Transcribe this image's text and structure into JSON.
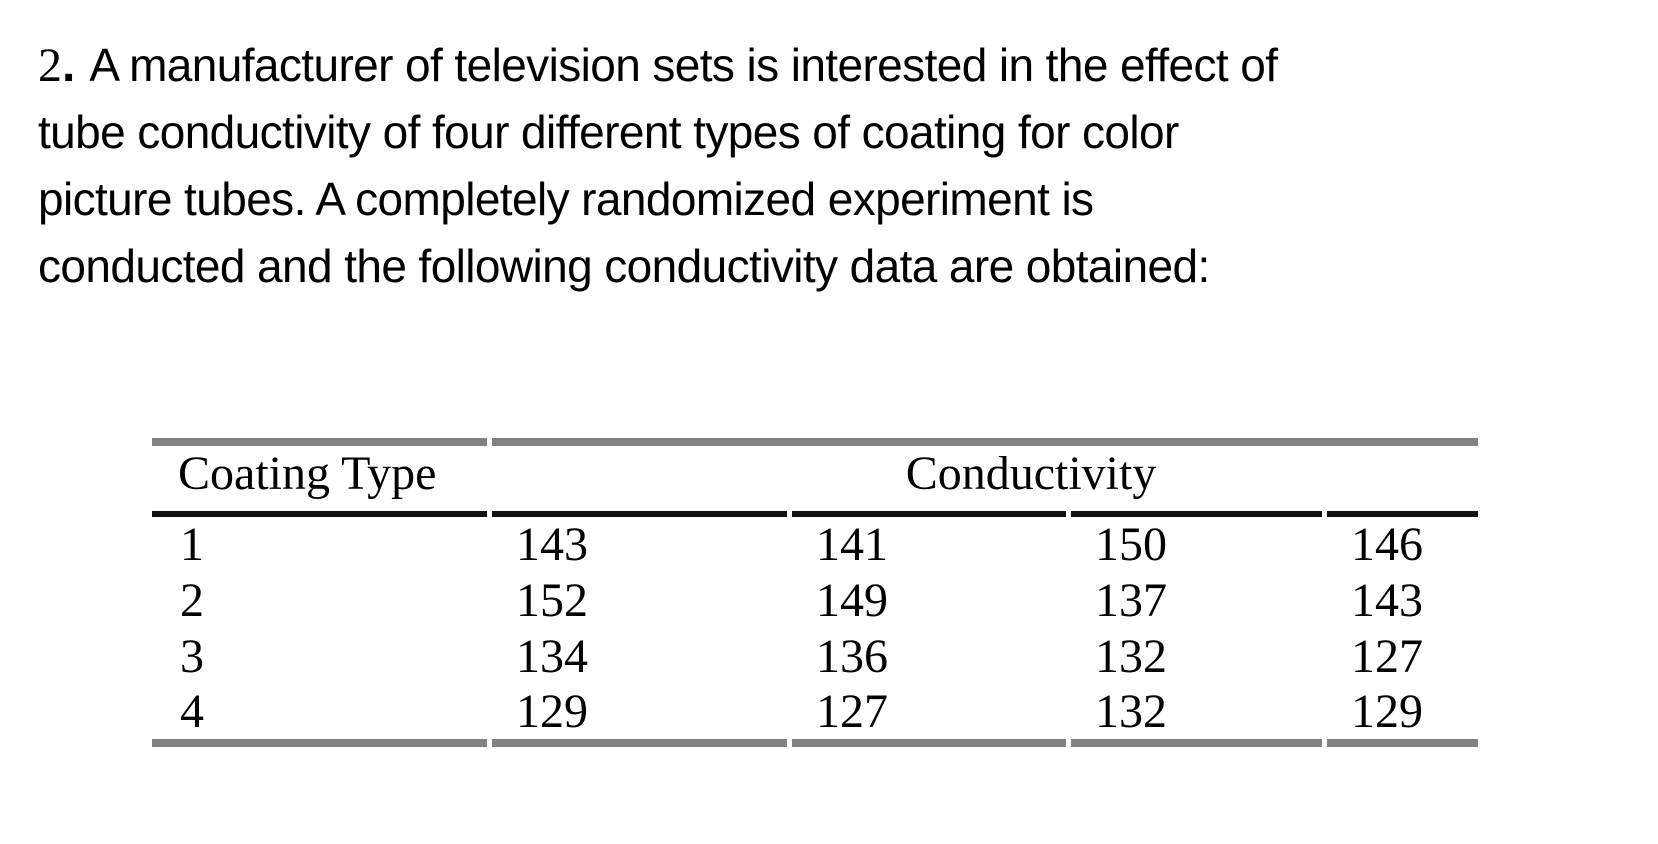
{
  "problem": {
    "number": "2",
    "number_separator": ".",
    "lines": [
      "A manufacturer of television sets is interested in the effect of",
      "tube conductivity of four different types of coating for color",
      "picture tubes. A completely randomized experiment is",
      "conducted and the following conductivity data are obtained:"
    ]
  },
  "table": {
    "headers": {
      "coating_type": "Coating Type",
      "conductivity": "Conductivity"
    },
    "rows": [
      {
        "coating_type": "1",
        "values": [
          "143",
          "141",
          "150",
          "146"
        ]
      },
      {
        "coating_type": "2",
        "values": [
          "152",
          "149",
          "137",
          "143"
        ]
      },
      {
        "coating_type": "3",
        "values": [
          "134",
          "136",
          "132",
          "127"
        ]
      },
      {
        "coating_type": "4",
        "values": [
          "129",
          "127",
          "132",
          "129"
        ]
      }
    ]
  },
  "colors": {
    "background": "#ffffff",
    "text": "#000000",
    "outer_rule_gray": "#828282",
    "header_rule_black": "#111111"
  }
}
